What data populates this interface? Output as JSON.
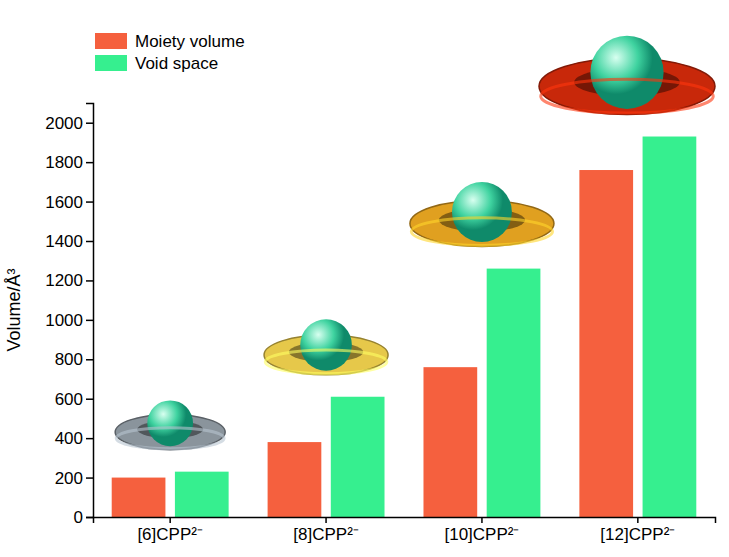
{
  "chart_data": {
    "type": "bar",
    "y_label": "Volume/Å³",
    "categories": [
      "[6]CPP²⁻",
      "[8]CPP²⁻",
      "[10]CPP²⁻",
      "[12]CPP²⁻"
    ],
    "series": [
      {
        "name": "Moiety volume",
        "color": "#f5603e",
        "values": [
          200,
          380,
          760,
          1760
        ]
      },
      {
        "name": "Void space",
        "color": "#36ef8f",
        "values": [
          230,
          610,
          1260,
          1930
        ]
      }
    ],
    "ylim": [
      0,
      2100
    ],
    "yticks": [
      0,
      200,
      400,
      600,
      800,
      1000,
      1200,
      1400,
      1600,
      1800,
      2000
    ],
    "legend": "upper left",
    "grid": false
  }
}
